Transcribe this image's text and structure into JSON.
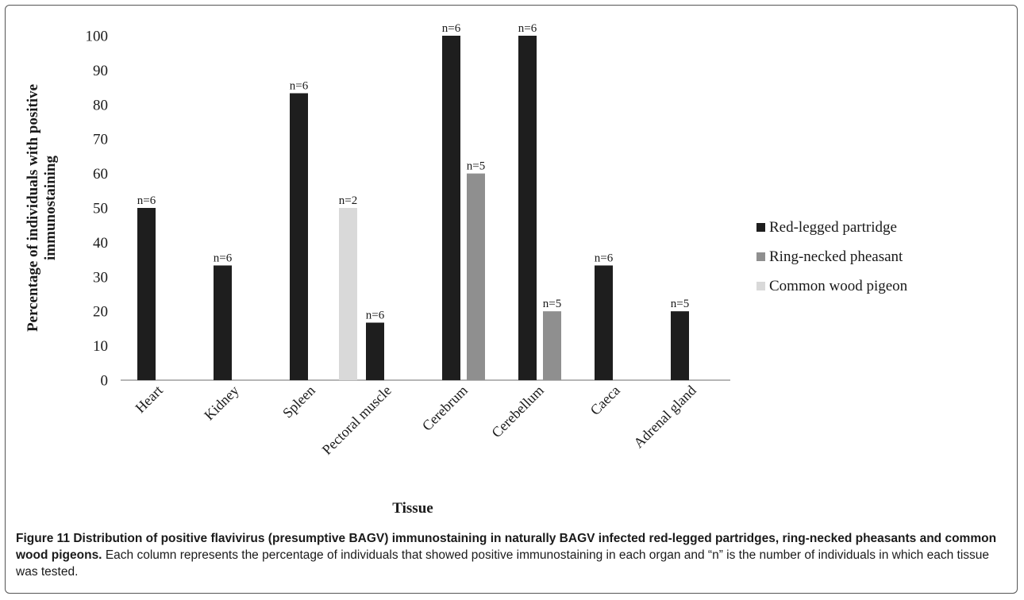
{
  "chart_data": {
    "type": "bar",
    "xlabel": "Tissue",
    "ylabel": "Percentage of individuals with positive immunostaining",
    "ylim": [
      0,
      100
    ],
    "yticks": [
      0,
      10,
      20,
      30,
      40,
      50,
      60,
      70,
      80,
      90,
      100
    ],
    "grid": false,
    "legend_position": "right",
    "categories": [
      "Heart",
      "Kidney",
      "Spleen",
      "Pectoral muscle",
      "Cerebrum",
      "Cerebellum",
      "Caeca",
      "Adrenal gland"
    ],
    "series": [
      {
        "name": "Red-legged partridge",
        "color": "#1e1e1e",
        "values": [
          50,
          33.3,
          83.3,
          16.7,
          100,
          100,
          33.3,
          20
        ],
        "labels": [
          "n=6",
          "n=6",
          "n=6",
          "n=6",
          "n=6",
          "n=6",
          "n=6",
          "n=5"
        ]
      },
      {
        "name": "Ring-necked pheasant",
        "color": "#8f8f8f",
        "values": [
          null,
          null,
          null,
          null,
          60,
          20,
          null,
          null
        ],
        "labels": [
          null,
          null,
          null,
          null,
          "n=5",
          "n=5",
          null,
          null
        ]
      },
      {
        "name": "Common wood pigeon",
        "color": "#d9d9d9",
        "values": [
          null,
          null,
          50,
          null,
          null,
          null,
          null,
          null
        ],
        "labels": [
          null,
          null,
          "n=2",
          null,
          null,
          null,
          null,
          null
        ]
      }
    ]
  },
  "caption": {
    "title": "Figure 11 Distribution of positive flavivirus (presumptive BAGV) immunostaining in naturally BAGV infected red-legged partridges, ring-necked pheasants and common wood pigeons.",
    "text": "Each column represents the percentage of individuals that showed positive immunostaining in each organ and “n” is the number of individuals in which each tissue was tested."
  }
}
